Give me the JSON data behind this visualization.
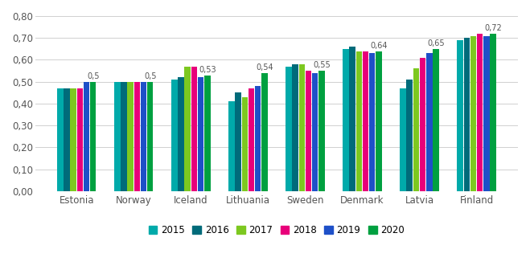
{
  "categories": [
    "Estonia",
    "Norway",
    "Iceland",
    "Lithuania",
    "Sweden",
    "Denmark",
    "Latvia",
    "Finland"
  ],
  "years": [
    "2015",
    "2016",
    "2017",
    "2018",
    "2019",
    "2020"
  ],
  "colors": {
    "2015": "#00AAAA",
    "2016": "#006B7A",
    "2017": "#7DC820",
    "2018": "#E8007A",
    "2019": "#1E50C8",
    "2020": "#00A040"
  },
  "values": {
    "Estonia": [
      0.47,
      0.47,
      0.47,
      0.47,
      0.5,
      0.5
    ],
    "Norway": [
      0.5,
      0.5,
      0.5,
      0.5,
      0.5,
      0.5
    ],
    "Iceland": [
      0.51,
      0.52,
      0.57,
      0.57,
      0.52,
      0.53
    ],
    "Lithuania": [
      0.41,
      0.45,
      0.43,
      0.47,
      0.48,
      0.54
    ],
    "Sweden": [
      0.57,
      0.58,
      0.58,
      0.55,
      0.54,
      0.55
    ],
    "Denmark": [
      0.65,
      0.66,
      0.64,
      0.64,
      0.63,
      0.64
    ],
    "Latvia": [
      0.47,
      0.51,
      0.56,
      0.61,
      0.63,
      0.65
    ],
    "Finland": [
      0.69,
      0.7,
      0.71,
      0.72,
      0.71,
      0.72
    ]
  },
  "annotations": {
    "Estonia": {
      "value": 0.5,
      "label": "0,5"
    },
    "Norway": {
      "value": 0.5,
      "label": "0,5"
    },
    "Iceland": {
      "value": 0.53,
      "label": "0,53"
    },
    "Lithuania": {
      "value": 0.54,
      "label": "0,54"
    },
    "Sweden": {
      "value": 0.55,
      "label": "0,55"
    },
    "Denmark": {
      "value": 0.64,
      "label": "0,64"
    },
    "Latvia": {
      "value": 0.65,
      "label": "0,65"
    },
    "Finland": {
      "value": 0.72,
      "label": "0,72"
    }
  },
  "ylim": [
    0.0,
    0.8
  ],
  "yticks": [
    0.0,
    0.1,
    0.2,
    0.3,
    0.4,
    0.5,
    0.6,
    0.7,
    0.8
  ],
  "ytick_labels": [
    "0,00",
    "0,10",
    "0,20",
    "0,30",
    "0,40",
    "0,50",
    "0,60",
    "0,70",
    "0,80"
  ],
  "background_color": "#ffffff",
  "grid_color": "#d0d0d0",
  "bar_width": 0.115,
  "figsize": [
    6.59,
    3.41
  ],
  "dpi": 100
}
